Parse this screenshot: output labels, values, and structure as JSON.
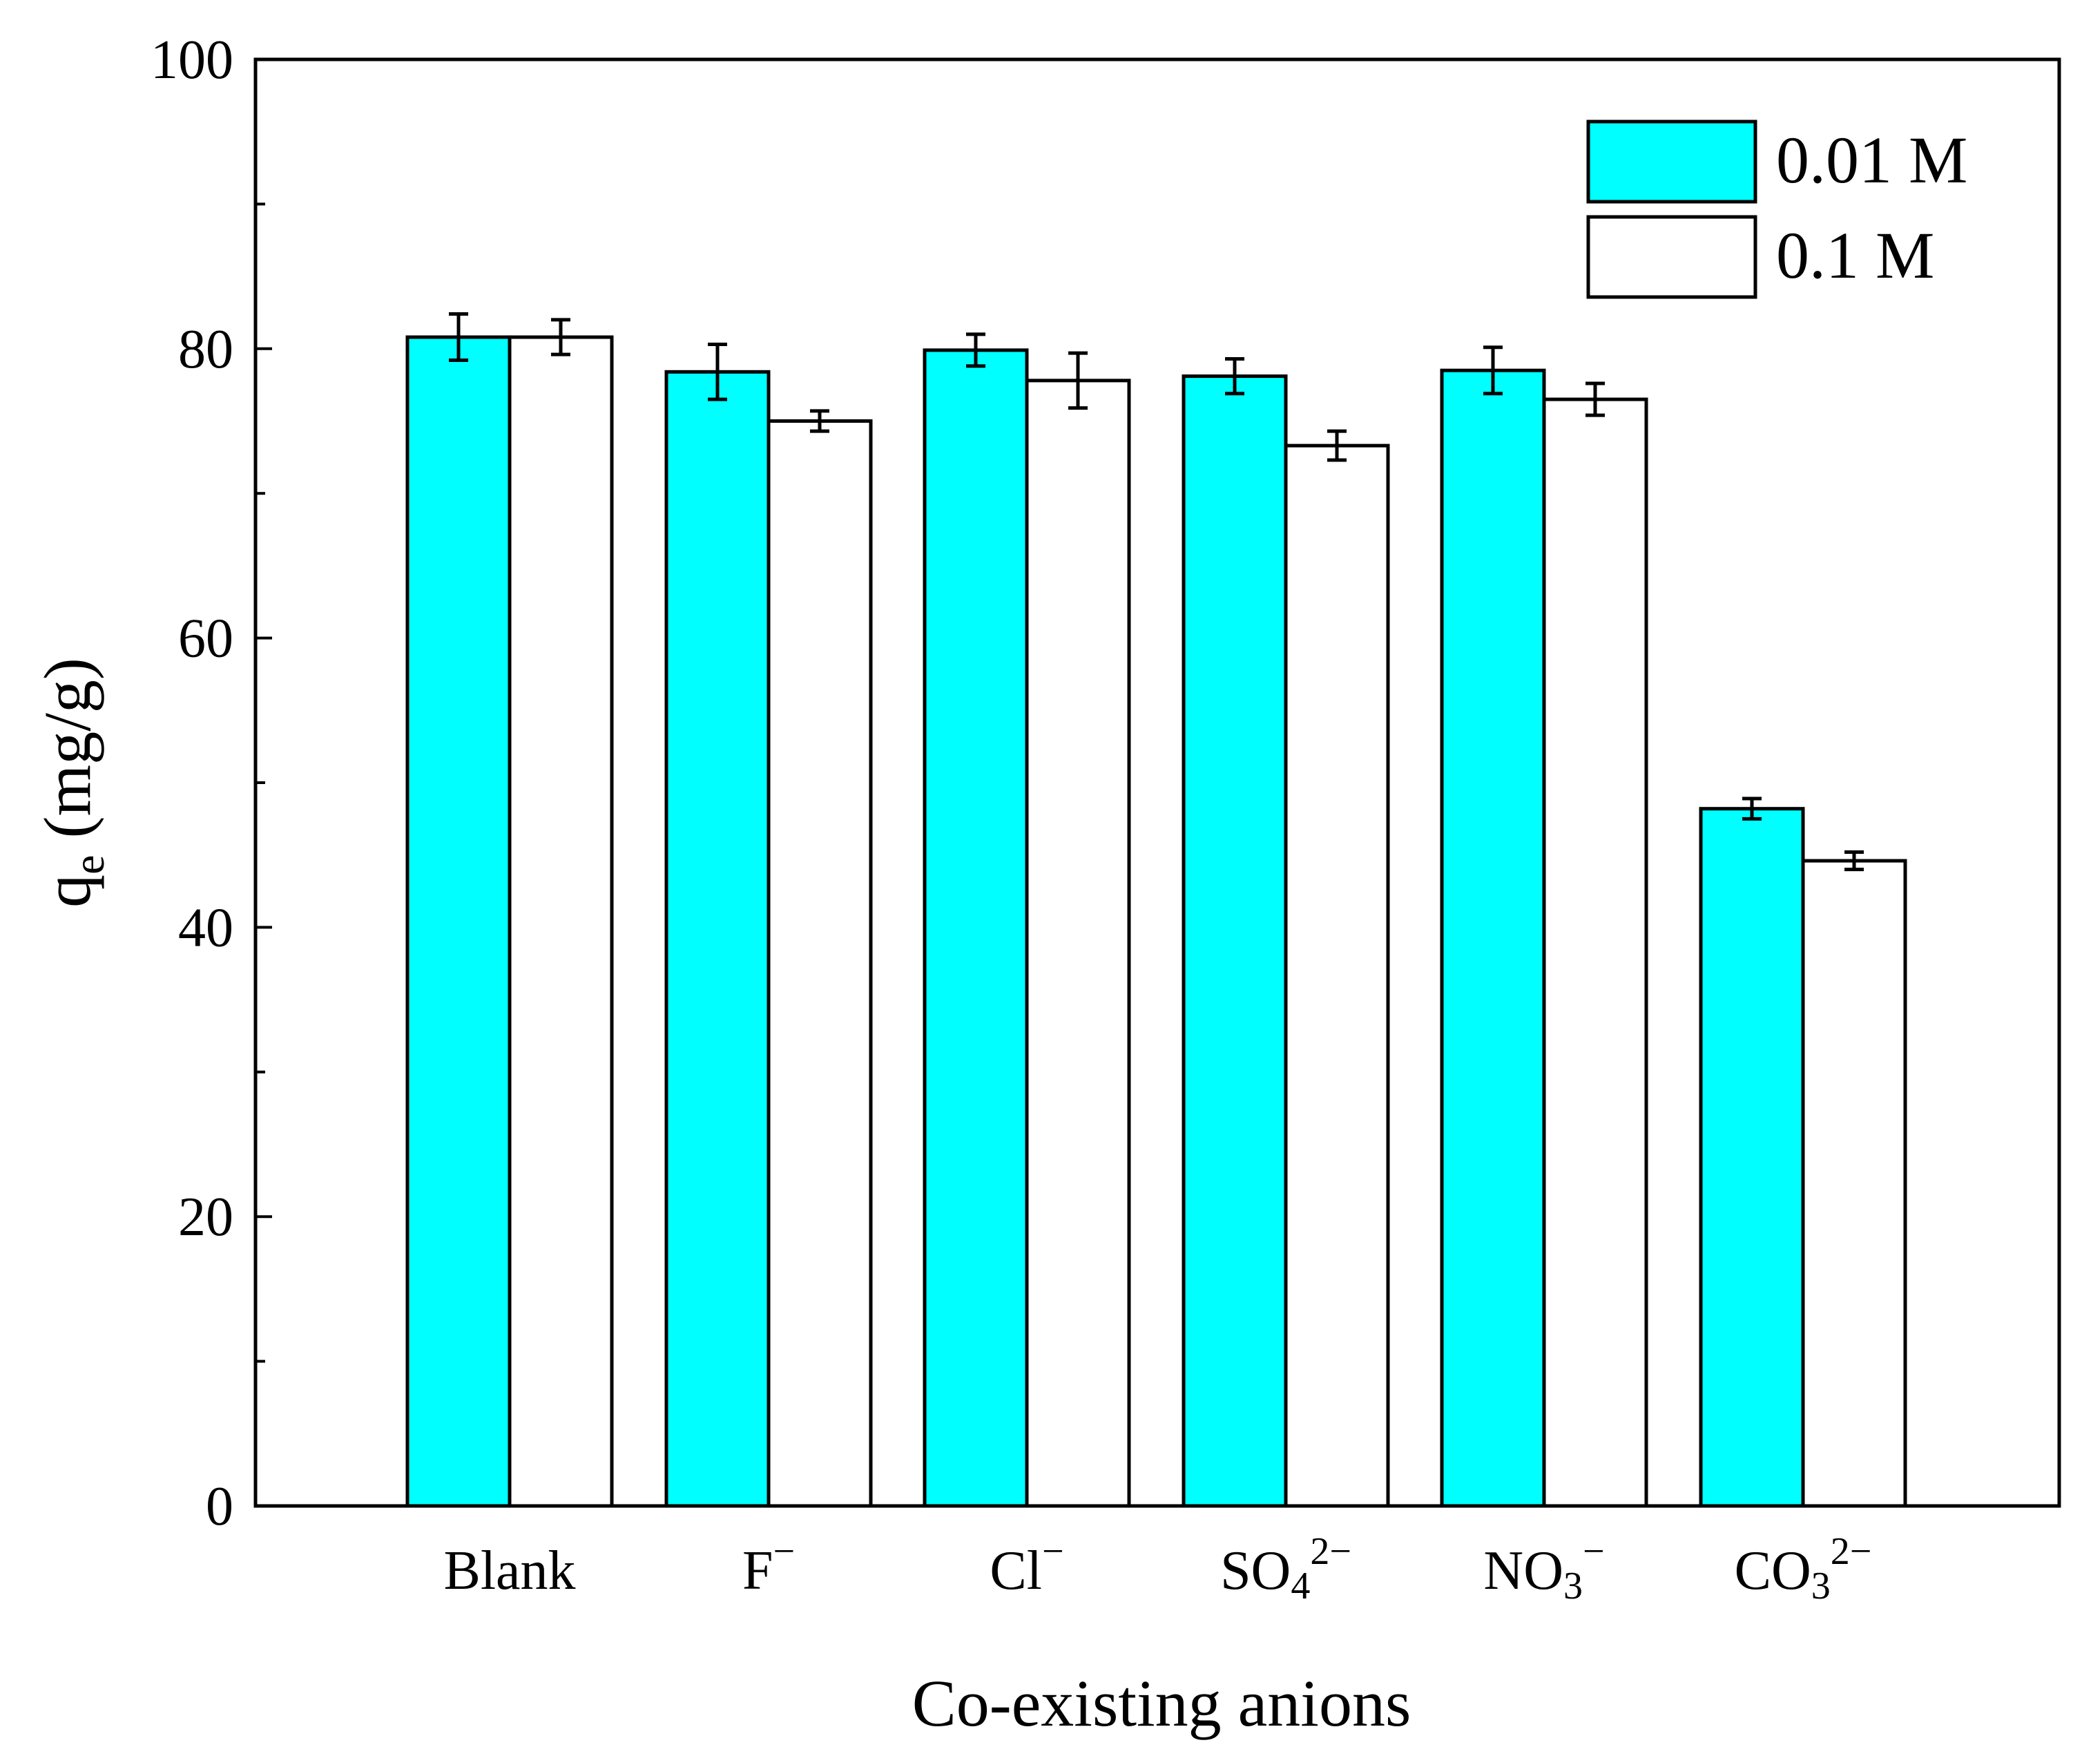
{
  "chart_data": {
    "type": "bar",
    "title": "",
    "xlabel": "Co-existing anions",
    "ylabel": {
      "main": "q",
      "sub": "e",
      "rest": " (mg/g)"
    },
    "ylim": [
      0,
      100
    ],
    "yticks": [
      "0",
      "20",
      "40",
      "60",
      "80",
      "100"
    ],
    "minor_tick_step": 10,
    "categories": [
      {
        "label": "Blank",
        "base": "Blank",
        "sub": "",
        "sup": ""
      },
      {
        "label": "F−",
        "base": "F",
        "sub": "",
        "sup": "−"
      },
      {
        "label": "Cl−",
        "base": "Cl",
        "sub": "",
        "sup": "−"
      },
      {
        "label": "SO42−",
        "base": "SO",
        "sub": "4",
        "sup": "2−"
      },
      {
        "label": "NO3−",
        "base": "NO",
        "sub": "3",
        "sup": "−"
      },
      {
        "label": "CO32−",
        "base": "CO",
        "sub": "3",
        "sup": "2−"
      }
    ],
    "series": [
      {
        "name": "0.01 M",
        "color": "#00ffff",
        "values": [
          80.8,
          78.4,
          79.9,
          78.1,
          78.5,
          48.2
        ],
        "errors": [
          1.6,
          1.9,
          1.1,
          1.2,
          1.6,
          0.7
        ]
      },
      {
        "name": "0.1 M",
        "color": "#ffffff",
        "values": [
          80.8,
          75.0,
          77.8,
          73.3,
          76.5,
          44.6
        ],
        "errors": [
          1.2,
          0.7,
          1.9,
          1.0,
          1.1,
          0.6
        ]
      }
    ],
    "legend": {
      "position": "top-right"
    }
  }
}
